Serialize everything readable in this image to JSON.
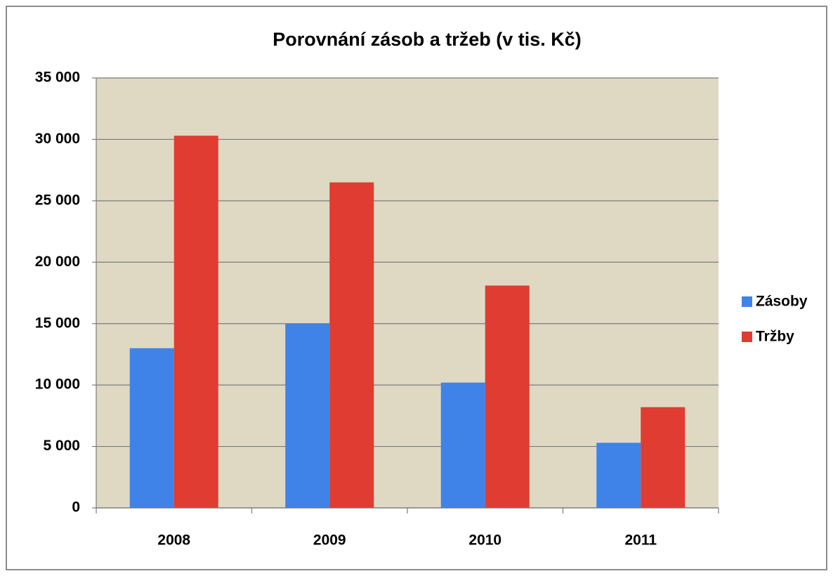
{
  "chart_data": {
    "type": "bar",
    "title": "Porovnání zásob a tržeb (v tis. Kč)",
    "categories": [
      "2008",
      "2009",
      "2010",
      "2011"
    ],
    "series": [
      {
        "name": "Zásoby",
        "color": "#3f83e8",
        "values": [
          13000,
          15000,
          10200,
          5300
        ]
      },
      {
        "name": "Tržby",
        "color": "#e03c31",
        "values": [
          30300,
          26500,
          18100,
          8200
        ]
      }
    ],
    "ylim": [
      0,
      35000
    ],
    "yticks": [
      0,
      {
        "value": 5000,
        "label": "5 000"
      },
      {
        "value": 10000,
        "label": "10 000"
      },
      {
        "value": 15000,
        "label": "15 000"
      },
      {
        "value": 20000,
        "label": "20 000"
      },
      {
        "value": 25000,
        "label": "25 000"
      },
      {
        "value": 30000,
        "label": "30 000"
      },
      {
        "value": 35000,
        "label": "35 000"
      }
    ],
    "grid": true,
    "legend": "right"
  }
}
